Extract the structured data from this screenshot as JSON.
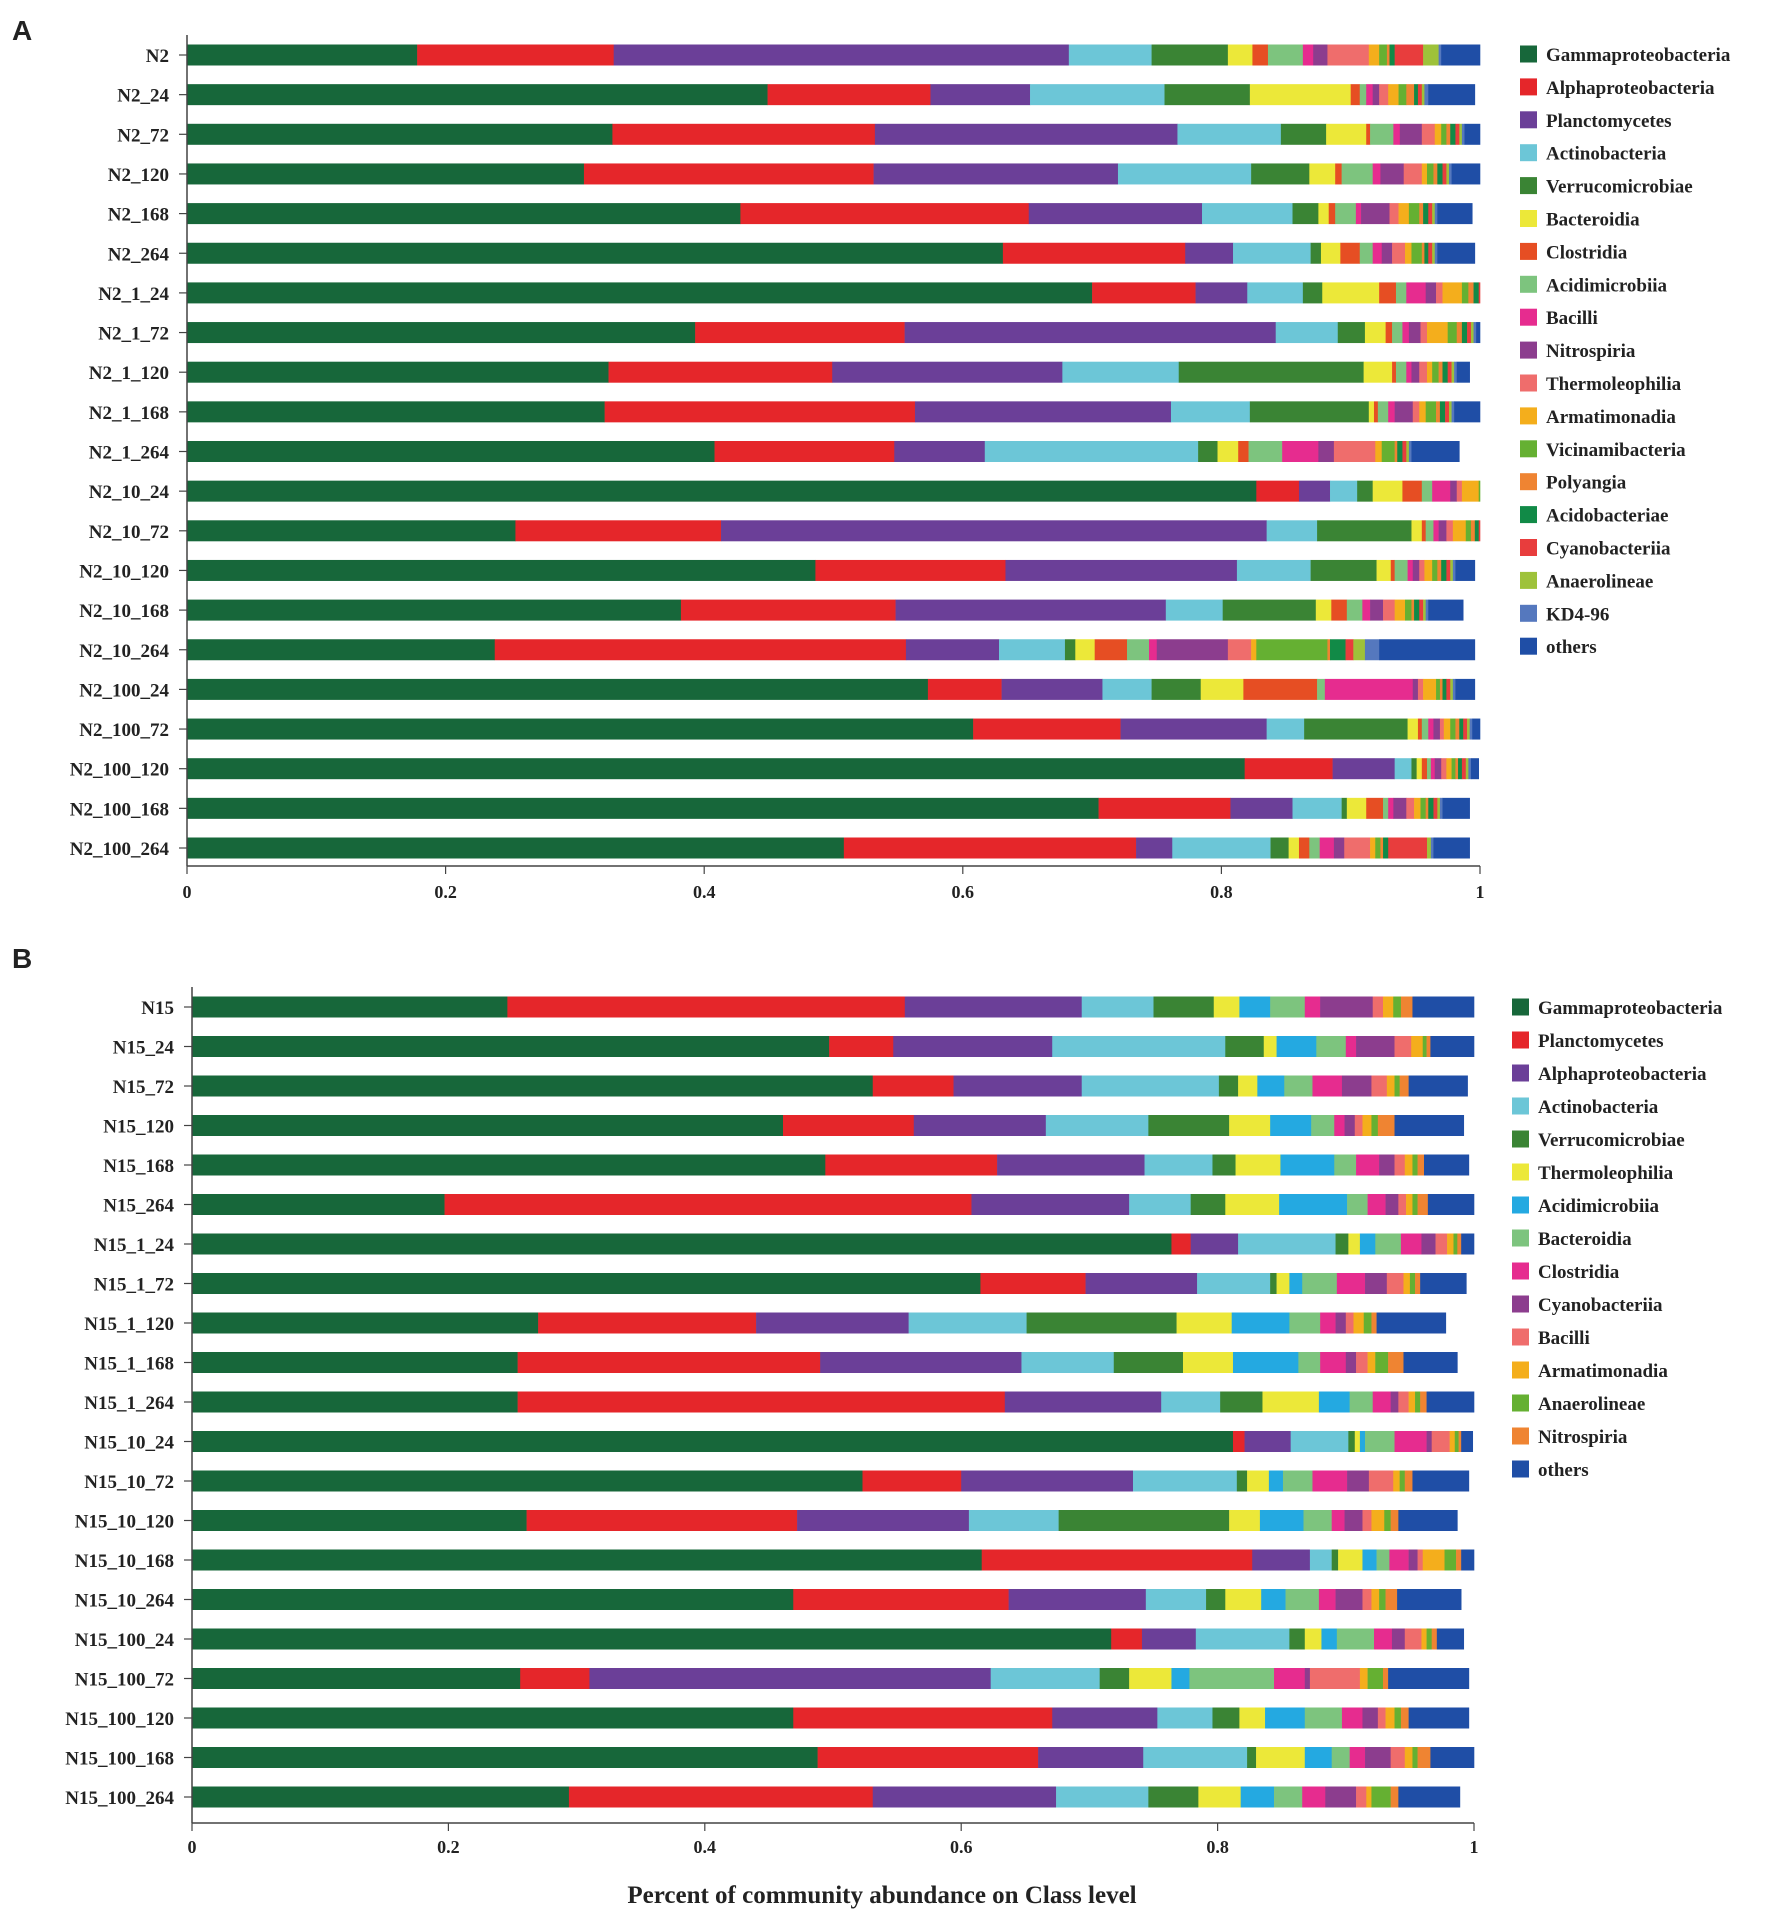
{
  "xlabel": "Percent of community abundance on Class level",
  "chart_data": [
    {
      "type": "bar",
      "orientation": "horizontal",
      "stacked": true,
      "panel": "A",
      "xlim": [
        0,
        1
      ],
      "ticks": [
        "0",
        "0.2",
        "0.4",
        "0.6",
        "0.8",
        "1"
      ],
      "categories": [
        "N2",
        "N2_24",
        "N2_72",
        "N2_120",
        "N2_168",
        "N2_264",
        "N2_1_24",
        "N2_1_72",
        "N2_1_120",
        "N2_1_168",
        "N2_1_264",
        "N2_10_24",
        "N2_10_72",
        "N2_10_120",
        "N2_10_168",
        "N2_10_264",
        "N2_100_24",
        "N2_100_72",
        "N2_100_120",
        "N2_100_168",
        "N2_100_264"
      ],
      "series": [
        {
          "name": "Gammaproteobacteria",
          "color": "#17673a",
          "values": [
            0.178,
            0.449,
            0.329,
            0.307,
            0.428,
            0.631,
            0.7,
            0.393,
            0.326,
            0.323,
            0.408,
            0.827,
            0.254,
            0.486,
            0.382,
            0.238,
            0.573,
            0.608,
            0.818,
            0.705,
            0.508
          ]
        },
        {
          "name": "Alphaproteobacteria",
          "color": "#e5262a",
          "values": [
            0.152,
            0.126,
            0.203,
            0.224,
            0.223,
            0.141,
            0.08,
            0.162,
            0.173,
            0.24,
            0.139,
            0.033,
            0.159,
            0.147,
            0.166,
            0.318,
            0.057,
            0.114,
            0.068,
            0.102,
            0.226
          ]
        },
        {
          "name": "Planctomycetes",
          "color": "#6b3f98",
          "values": [
            0.352,
            0.077,
            0.234,
            0.189,
            0.134,
            0.037,
            0.04,
            0.287,
            0.178,
            0.198,
            0.07,
            0.024,
            0.422,
            0.179,
            0.209,
            0.072,
            0.078,
            0.113,
            0.048,
            0.048,
            0.028
          ]
        },
        {
          "name": "Actinobacteria",
          "color": "#6cc6d7",
          "values": [
            0.064,
            0.104,
            0.08,
            0.103,
            0.07,
            0.06,
            0.043,
            0.048,
            0.09,
            0.061,
            0.165,
            0.021,
            0.039,
            0.057,
            0.044,
            0.051,
            0.038,
            0.029,
            0.013,
            0.038,
            0.076
          ]
        },
        {
          "name": "Verrucomicrobiae",
          "color": "#3a8434",
          "values": [
            0.059,
            0.066,
            0.035,
            0.045,
            0.02,
            0.008,
            0.015,
            0.021,
            0.143,
            0.092,
            0.015,
            0.012,
            0.073,
            0.051,
            0.072,
            0.008,
            0.038,
            0.08,
            0.004,
            0.004,
            0.014
          ]
        },
        {
          "name": "Bacteroidia",
          "color": "#ece839",
          "values": [
            0.019,
            0.078,
            0.031,
            0.02,
            0.008,
            0.015,
            0.044,
            0.016,
            0.022,
            0.004,
            0.016,
            0.023,
            0.008,
            0.011,
            0.012,
            0.015,
            0.033,
            0.008,
            0.004,
            0.015,
            0.008
          ]
        },
        {
          "name": "Clostridia",
          "color": "#e64e23",
          "values": [
            0.012,
            0.007,
            0.003,
            0.005,
            0.005,
            0.015,
            0.013,
            0.005,
            0.003,
            0.003,
            0.008,
            0.015,
            0.003,
            0.003,
            0.012,
            0.025,
            0.057,
            0.003,
            0.004,
            0.013,
            0.008
          ]
        },
        {
          "name": "Acidimicrobiia",
          "color": "#7dc47e",
          "values": [
            0.027,
            0.005,
            0.018,
            0.024,
            0.016,
            0.01,
            0.008,
            0.008,
            0.008,
            0.008,
            0.026,
            0.008,
            0.006,
            0.01,
            0.012,
            0.017,
            0.006,
            0.005,
            0.003,
            0.004,
            0.008
          ]
        },
        {
          "name": "Bacilli",
          "color": "#e62c8f",
          "values": [
            0.008,
            0.005,
            0.005,
            0.006,
            0.004,
            0.007,
            0.015,
            0.005,
            0.004,
            0.005,
            0.028,
            0.014,
            0.004,
            0.004,
            0.006,
            0.006,
            0.068,
            0.004,
            0.003,
            0.004,
            0.011
          ]
        },
        {
          "name": "Nitrospiria",
          "color": "#8c3d8e",
          "values": [
            0.011,
            0.005,
            0.017,
            0.018,
            0.022,
            0.008,
            0.008,
            0.009,
            0.006,
            0.014,
            0.012,
            0.005,
            0.006,
            0.005,
            0.01,
            0.055,
            0.004,
            0.005,
            0.005,
            0.01,
            0.008
          ]
        },
        {
          "name": "Thermoleophilia",
          "color": "#ef6d6c",
          "values": [
            0.032,
            0.007,
            0.01,
            0.014,
            0.007,
            0.01,
            0.005,
            0.005,
            0.006,
            0.005,
            0.032,
            0.004,
            0.005,
            0.004,
            0.009,
            0.018,
            0.004,
            0.003,
            0.004,
            0.006,
            0.02
          ]
        },
        {
          "name": "Armatimonadia",
          "color": "#f4ae1c",
          "values": [
            0.008,
            0.008,
            0.005,
            0.004,
            0.008,
            0.005,
            0.015,
            0.016,
            0.004,
            0.005,
            0.005,
            0.013,
            0.01,
            0.006,
            0.008,
            0.004,
            0.01,
            0.005,
            0.004,
            0.005,
            0.004
          ]
        },
        {
          "name": "Vicinamibacteria",
          "color": "#65b032",
          "values": [
            0.006,
            0.006,
            0.004,
            0.005,
            0.008,
            0.008,
            0.005,
            0.007,
            0.005,
            0.008,
            0.01,
            0.004,
            0.004,
            0.004,
            0.005,
            0.055,
            0.003,
            0.004,
            0.003,
            0.004,
            0.004
          ]
        },
        {
          "name": "Polyangia",
          "color": "#ef8432",
          "values": [
            0.002,
            0.006,
            0.003,
            0.003,
            0.003,
            0.002,
            0.004,
            0.004,
            0.003,
            0.003,
            0.002,
            0.002,
            0.003,
            0.003,
            0.002,
            0.002,
            0.002,
            0.003,
            0.002,
            0.002,
            0.002
          ]
        },
        {
          "name": "Acidobacteriae",
          "color": "#118a47",
          "values": [
            0.004,
            0.003,
            0.004,
            0.004,
            0.004,
            0.003,
            0.004,
            0.004,
            0.004,
            0.004,
            0.004,
            0.003,
            0.003,
            0.004,
            0.004,
            0.012,
            0.003,
            0.003,
            0.003,
            0.004,
            0.004
          ]
        },
        {
          "name": "Cyanobacteriia",
          "color": "#e83d3d",
          "values": [
            0.022,
            0.003,
            0.003,
            0.003,
            0.003,
            0.003,
            0.003,
            0.003,
            0.003,
            0.003,
            0.003,
            0.002,
            0.003,
            0.003,
            0.003,
            0.006,
            0.003,
            0.003,
            0.003,
            0.003,
            0.03
          ]
        },
        {
          "name": "Anaerolineae",
          "color": "#9ec23a",
          "values": [
            0.012,
            0.002,
            0.002,
            0.002,
            0.002,
            0.002,
            0.002,
            0.002,
            0.002,
            0.002,
            0.002,
            0.002,
            0.002,
            0.002,
            0.002,
            0.009,
            0.002,
            0.002,
            0.002,
            0.002,
            0.003
          ]
        },
        {
          "name": "KD4-96",
          "color": "#5578be",
          "values": [
            0.002,
            0.003,
            0.002,
            0.002,
            0.002,
            0.002,
            0.002,
            0.002,
            0.002,
            0.002,
            0.002,
            0.002,
            0.002,
            0.002,
            0.002,
            0.011,
            0.002,
            0.002,
            0.002,
            0.002,
            0.002
          ]
        },
        {
          "name": "others",
          "color": "#1f4ea6",
          "values": [
            0.03,
            0.036,
            0.024,
            0.025,
            0.027,
            0.029,
            0.013,
            0.015,
            0.01,
            0.022,
            0.037,
            0.006,
            0.013,
            0.015,
            0.027,
            0.074,
            0.015,
            0.01,
            0.006,
            0.021,
            0.028
          ]
        }
      ]
    },
    {
      "type": "bar",
      "orientation": "horizontal",
      "stacked": true,
      "panel": "B",
      "xlim": [
        0,
        1
      ],
      "ticks": [
        "0",
        "0.2",
        "0.4",
        "0.6",
        "0.8",
        "1"
      ],
      "categories": [
        "N15",
        "N15_24",
        "N15_72",
        "N15_120",
        "N15_168",
        "N15_264",
        "N15_1_24",
        "N15_1_72",
        "N15_1_120",
        "N15_1_168",
        "N15_1_264",
        "N15_10_24",
        "N15_10_72",
        "N15_10_120",
        "N15_10_168",
        "N15_10_264",
        "N15_100_24",
        "N15_100_72",
        "N15_100_120",
        "N15_100_168",
        "N15_100_264"
      ],
      "series": [
        {
          "name": "Gammaproteobacteria",
          "color": "#17673a",
          "values": [
            0.246,
            0.497,
            0.531,
            0.461,
            0.494,
            0.197,
            0.764,
            0.615,
            0.27,
            0.254,
            0.254,
            0.812,
            0.523,
            0.261,
            0.616,
            0.469,
            0.717,
            0.256,
            0.469,
            0.488,
            0.294
          ]
        },
        {
          "name": "Planctomycetes",
          "color": "#e5262a",
          "values": [
            0.31,
            0.05,
            0.063,
            0.102,
            0.134,
            0.411,
            0.015,
            0.082,
            0.17,
            0.236,
            0.38,
            0.009,
            0.077,
            0.211,
            0.211,
            0.168,
            0.024,
            0.054,
            0.202,
            0.172,
            0.237
          ]
        },
        {
          "name": "Alphaproteobacteria",
          "color": "#6b3f98",
          "values": [
            0.138,
            0.124,
            0.1,
            0.103,
            0.115,
            0.123,
            0.037,
            0.087,
            0.119,
            0.157,
            0.122,
            0.036,
            0.134,
            0.134,
            0.045,
            0.107,
            0.042,
            0.313,
            0.082,
            0.082,
            0.143
          ]
        },
        {
          "name": "Actinobacteria",
          "color": "#6cc6d7",
          "values": [
            0.056,
            0.135,
            0.107,
            0.08,
            0.053,
            0.048,
            0.076,
            0.057,
            0.092,
            0.072,
            0.046,
            0.045,
            0.081,
            0.07,
            0.017,
            0.047,
            0.073,
            0.085,
            0.043,
            0.081,
            0.072
          ]
        },
        {
          "name": "Verrucomicrobiae",
          "color": "#3a8434",
          "values": [
            0.047,
            0.03,
            0.015,
            0.063,
            0.018,
            0.027,
            0.01,
            0.005,
            0.117,
            0.054,
            0.033,
            0.005,
            0.008,
            0.133,
            0.005,
            0.015,
            0.012,
            0.023,
            0.021,
            0.007,
            0.039
          ]
        },
        {
          "name": "Thermoleophilia",
          "color": "#ece839",
          "values": [
            0.02,
            0.01,
            0.015,
            0.032,
            0.035,
            0.042,
            0.009,
            0.01,
            0.043,
            0.039,
            0.044,
            0.004,
            0.017,
            0.024,
            0.019,
            0.028,
            0.013,
            0.033,
            0.02,
            0.038,
            0.033
          ]
        },
        {
          "name": "Acidimicrobiia",
          "color": "#24a9e1",
          "values": [
            0.024,
            0.031,
            0.021,
            0.032,
            0.042,
            0.053,
            0.012,
            0.01,
            0.045,
            0.051,
            0.024,
            0.004,
            0.011,
            0.034,
            0.011,
            0.019,
            0.012,
            0.014,
            0.031,
            0.021,
            0.026
          ]
        },
        {
          "name": "Bacteroidia",
          "color": "#7dc47e",
          "values": [
            0.027,
            0.023,
            0.022,
            0.018,
            0.017,
            0.016,
            0.02,
            0.027,
            0.024,
            0.017,
            0.018,
            0.023,
            0.023,
            0.022,
            0.01,
            0.026,
            0.029,
            0.066,
            0.029,
            0.014,
            0.022
          ]
        },
        {
          "name": "Clostridia",
          "color": "#e62c8f",
          "values": [
            0.012,
            0.008,
            0.023,
            0.008,
            0.018,
            0.014,
            0.016,
            0.022,
            0.012,
            0.02,
            0.014,
            0.025,
            0.027,
            0.01,
            0.015,
            0.013,
            0.014,
            0.024,
            0.016,
            0.012,
            0.018
          ]
        },
        {
          "name": "Cyanobacteriia",
          "color": "#8c3d8e",
          "values": [
            0.041,
            0.03,
            0.023,
            0.008,
            0.012,
            0.01,
            0.011,
            0.017,
            0.008,
            0.008,
            0.006,
            0.004,
            0.017,
            0.014,
            0.007,
            0.021,
            0.01,
            0.004,
            0.012,
            0.02,
            0.024
          ]
        },
        {
          "name": "Bacilli",
          "color": "#ef6d6c",
          "values": [
            0.008,
            0.013,
            0.012,
            0.006,
            0.008,
            0.006,
            0.009,
            0.013,
            0.006,
            0.009,
            0.008,
            0.014,
            0.019,
            0.007,
            0.004,
            0.007,
            0.013,
            0.039,
            0.006,
            0.011,
            0.008
          ]
        },
        {
          "name": "Armatimonadia",
          "color": "#f4ae1c",
          "values": [
            0.008,
            0.009,
            0.006,
            0.007,
            0.006,
            0.005,
            0.005,
            0.005,
            0.008,
            0.006,
            0.005,
            0.004,
            0.005,
            0.01,
            0.017,
            0.006,
            0.004,
            0.006,
            0.007,
            0.006,
            0.004
          ]
        },
        {
          "name": "Anaerolineae",
          "color": "#65b032",
          "values": [
            0.006,
            0.003,
            0.004,
            0.005,
            0.004,
            0.004,
            0.003,
            0.004,
            0.006,
            0.01,
            0.004,
            0.003,
            0.004,
            0.005,
            0.009,
            0.005,
            0.004,
            0.012,
            0.005,
            0.004,
            0.015
          ]
        },
        {
          "name": "Nitrospiria",
          "color": "#ef8432",
          "values": [
            0.009,
            0.003,
            0.007,
            0.013,
            0.005,
            0.008,
            0.003,
            0.004,
            0.004,
            0.012,
            0.005,
            0.002,
            0.006,
            0.006,
            0.004,
            0.009,
            0.004,
            0.004,
            0.006,
            0.01,
            0.006
          ]
        },
        {
          "name": "others",
          "color": "#1f4ea6",
          "values": [
            0.048,
            0.034,
            0.046,
            0.054,
            0.035,
            0.042,
            0.017,
            0.036,
            0.054,
            0.042,
            0.039,
            0.009,
            0.044,
            0.046,
            0.016,
            0.05,
            0.021,
            0.063,
            0.047,
            0.039,
            0.048
          ]
        }
      ]
    }
  ]
}
